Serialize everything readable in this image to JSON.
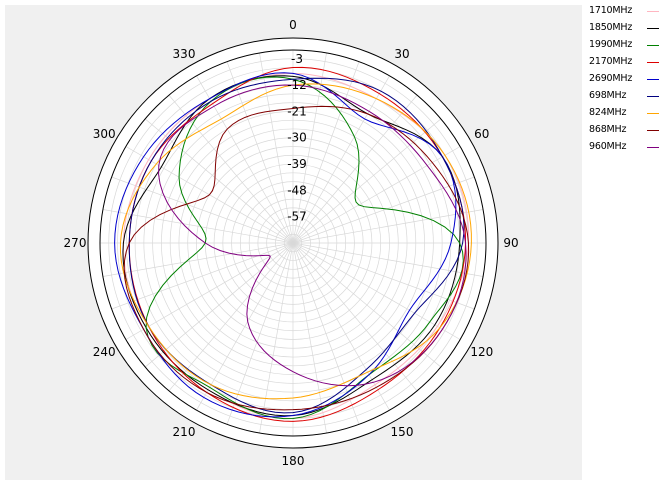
{
  "chart_data": {
    "type": "polar-line",
    "title": "",
    "angle_ticks": [
      "0",
      "30",
      "60",
      "90",
      "120",
      "150",
      "180",
      "210",
      "240",
      "270",
      "300",
      "330"
    ],
    "radial_ticks": [
      "-3",
      "-12",
      "-21",
      "-30",
      "-39",
      "-48",
      "-57"
    ],
    "radial_range": [
      -66,
      0
    ],
    "grid": true,
    "legend_position": "right",
    "series": [
      {
        "name": "1710MHz",
        "color": "#ffb6c1",
        "angles": [
          0,
          30,
          60,
          90,
          120,
          150,
          180,
          210,
          240,
          270,
          300,
          330
        ],
        "values": [
          -8,
          -9,
          -6,
          -6,
          -9,
          -10,
          -6,
          -8,
          -8,
          -8,
          -9,
          -9
        ]
      },
      {
        "name": "1850MHz",
        "color": "#000000",
        "angles": [
          0,
          30,
          60,
          90,
          120,
          150,
          180,
          210,
          240,
          270,
          300,
          330
        ],
        "values": [
          -9,
          -15,
          -7,
          -9,
          -10,
          -12,
          -7,
          -8,
          -8,
          -8,
          -14,
          -9
        ]
      },
      {
        "name": "1990MHz",
        "color": "#008000",
        "angles": [
          0,
          30,
          60,
          90,
          120,
          150,
          180,
          210,
          240,
          270,
          300,
          330
        ],
        "values": [
          -10,
          -24,
          -40,
          -9,
          -12,
          -14,
          -6,
          -9,
          -8,
          -36,
          -21,
          -10
        ]
      },
      {
        "name": "2170MHz",
        "color": "#dd0000",
        "angles": [
          0,
          30,
          60,
          90,
          120,
          150,
          180,
          210,
          240,
          270,
          300,
          330
        ],
        "values": [
          -6,
          -7,
          -7,
          -7,
          -8,
          -8,
          -5,
          -7,
          -9,
          -10,
          -10,
          -11
        ]
      },
      {
        "name": "2690MHz",
        "color": "#0000cc",
        "angles": [
          0,
          30,
          60,
          90,
          120,
          150,
          180,
          210,
          240,
          270,
          300,
          330
        ],
        "values": [
          -8,
          -17,
          -7,
          -12,
          -20,
          -14,
          -7,
          -5,
          -7,
          -5,
          -7,
          -9
        ]
      },
      {
        "name": "698MHz",
        "color": "#000080",
        "angles": [
          0,
          30,
          60,
          90,
          120,
          150,
          180,
          210,
          240,
          270,
          300,
          330
        ],
        "values": [
          -10,
          -6,
          -7,
          -8,
          -18,
          -16,
          -8,
          -10,
          -9,
          -10,
          -10,
          -10
        ]
      },
      {
        "name": "824MHz",
        "color": "#ffa500",
        "angles": [
          0,
          30,
          60,
          90,
          120,
          150,
          180,
          210,
          240,
          270,
          300,
          330
        ],
        "values": [
          -12,
          -9,
          -6,
          -5,
          -8,
          -15,
          -13,
          -10,
          -9,
          -7,
          -12,
          -17
        ]
      },
      {
        "name": "868MHz",
        "color": "#800000",
        "angles": [
          0,
          30,
          60,
          90,
          120,
          150,
          180,
          210,
          240,
          270,
          300,
          330
        ],
        "values": [
          -20,
          -15,
          -11,
          -6,
          -7,
          -9,
          -9,
          -7,
          -7,
          -10,
          -33,
          -21
        ]
      },
      {
        "name": "960MHz",
        "color": "#800080",
        "angles": [
          0,
          30,
          60,
          90,
          120,
          150,
          180,
          210,
          240,
          270,
          300,
          330
        ],
        "values": [
          -12,
          -14,
          -13,
          -7,
          -7,
          -11,
          -22,
          -35,
          -57,
          -36,
          -13,
          -12
        ]
      }
    ]
  }
}
